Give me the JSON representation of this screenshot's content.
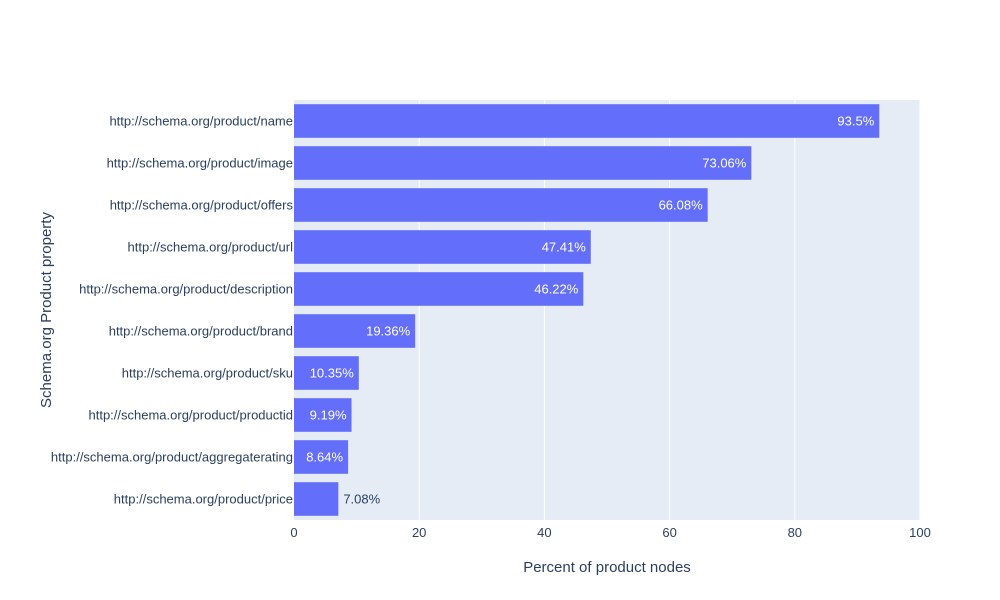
{
  "chart_data": {
    "type": "bar",
    "orientation": "horizontal",
    "xlabel": "Percent of product nodes",
    "ylabel": "Schema.org Product property",
    "xlim": [
      0,
      100
    ],
    "xticks": [
      "0",
      "20",
      "40",
      "60",
      "80",
      "100"
    ],
    "grid": true,
    "categories": [
      "http://schema.org/product/name",
      "http://schema.org/product/image",
      "http://schema.org/product/offers",
      "http://schema.org/product/url",
      "http://schema.org/product/description",
      "http://schema.org/product/brand",
      "http://schema.org/product/sku",
      "http://schema.org/product/productid",
      "http://schema.org/product/aggregaterating",
      "http://schema.org/product/price"
    ],
    "values": [
      93.5,
      73.06,
      66.08,
      47.41,
      46.22,
      19.36,
      10.35,
      9.19,
      8.64,
      7.08
    ],
    "value_labels": [
      "93.5%",
      "73.06%",
      "66.08%",
      "47.41%",
      "46.22%",
      "19.36%",
      "10.35%",
      "9.19%",
      "8.64%",
      "7.08%"
    ],
    "colors": {
      "bar": "#636efa",
      "plot_background": "#e5ecf6",
      "grid": "#ffffff",
      "text": "#2a3f5f",
      "label_inside": "#ffffff"
    }
  }
}
